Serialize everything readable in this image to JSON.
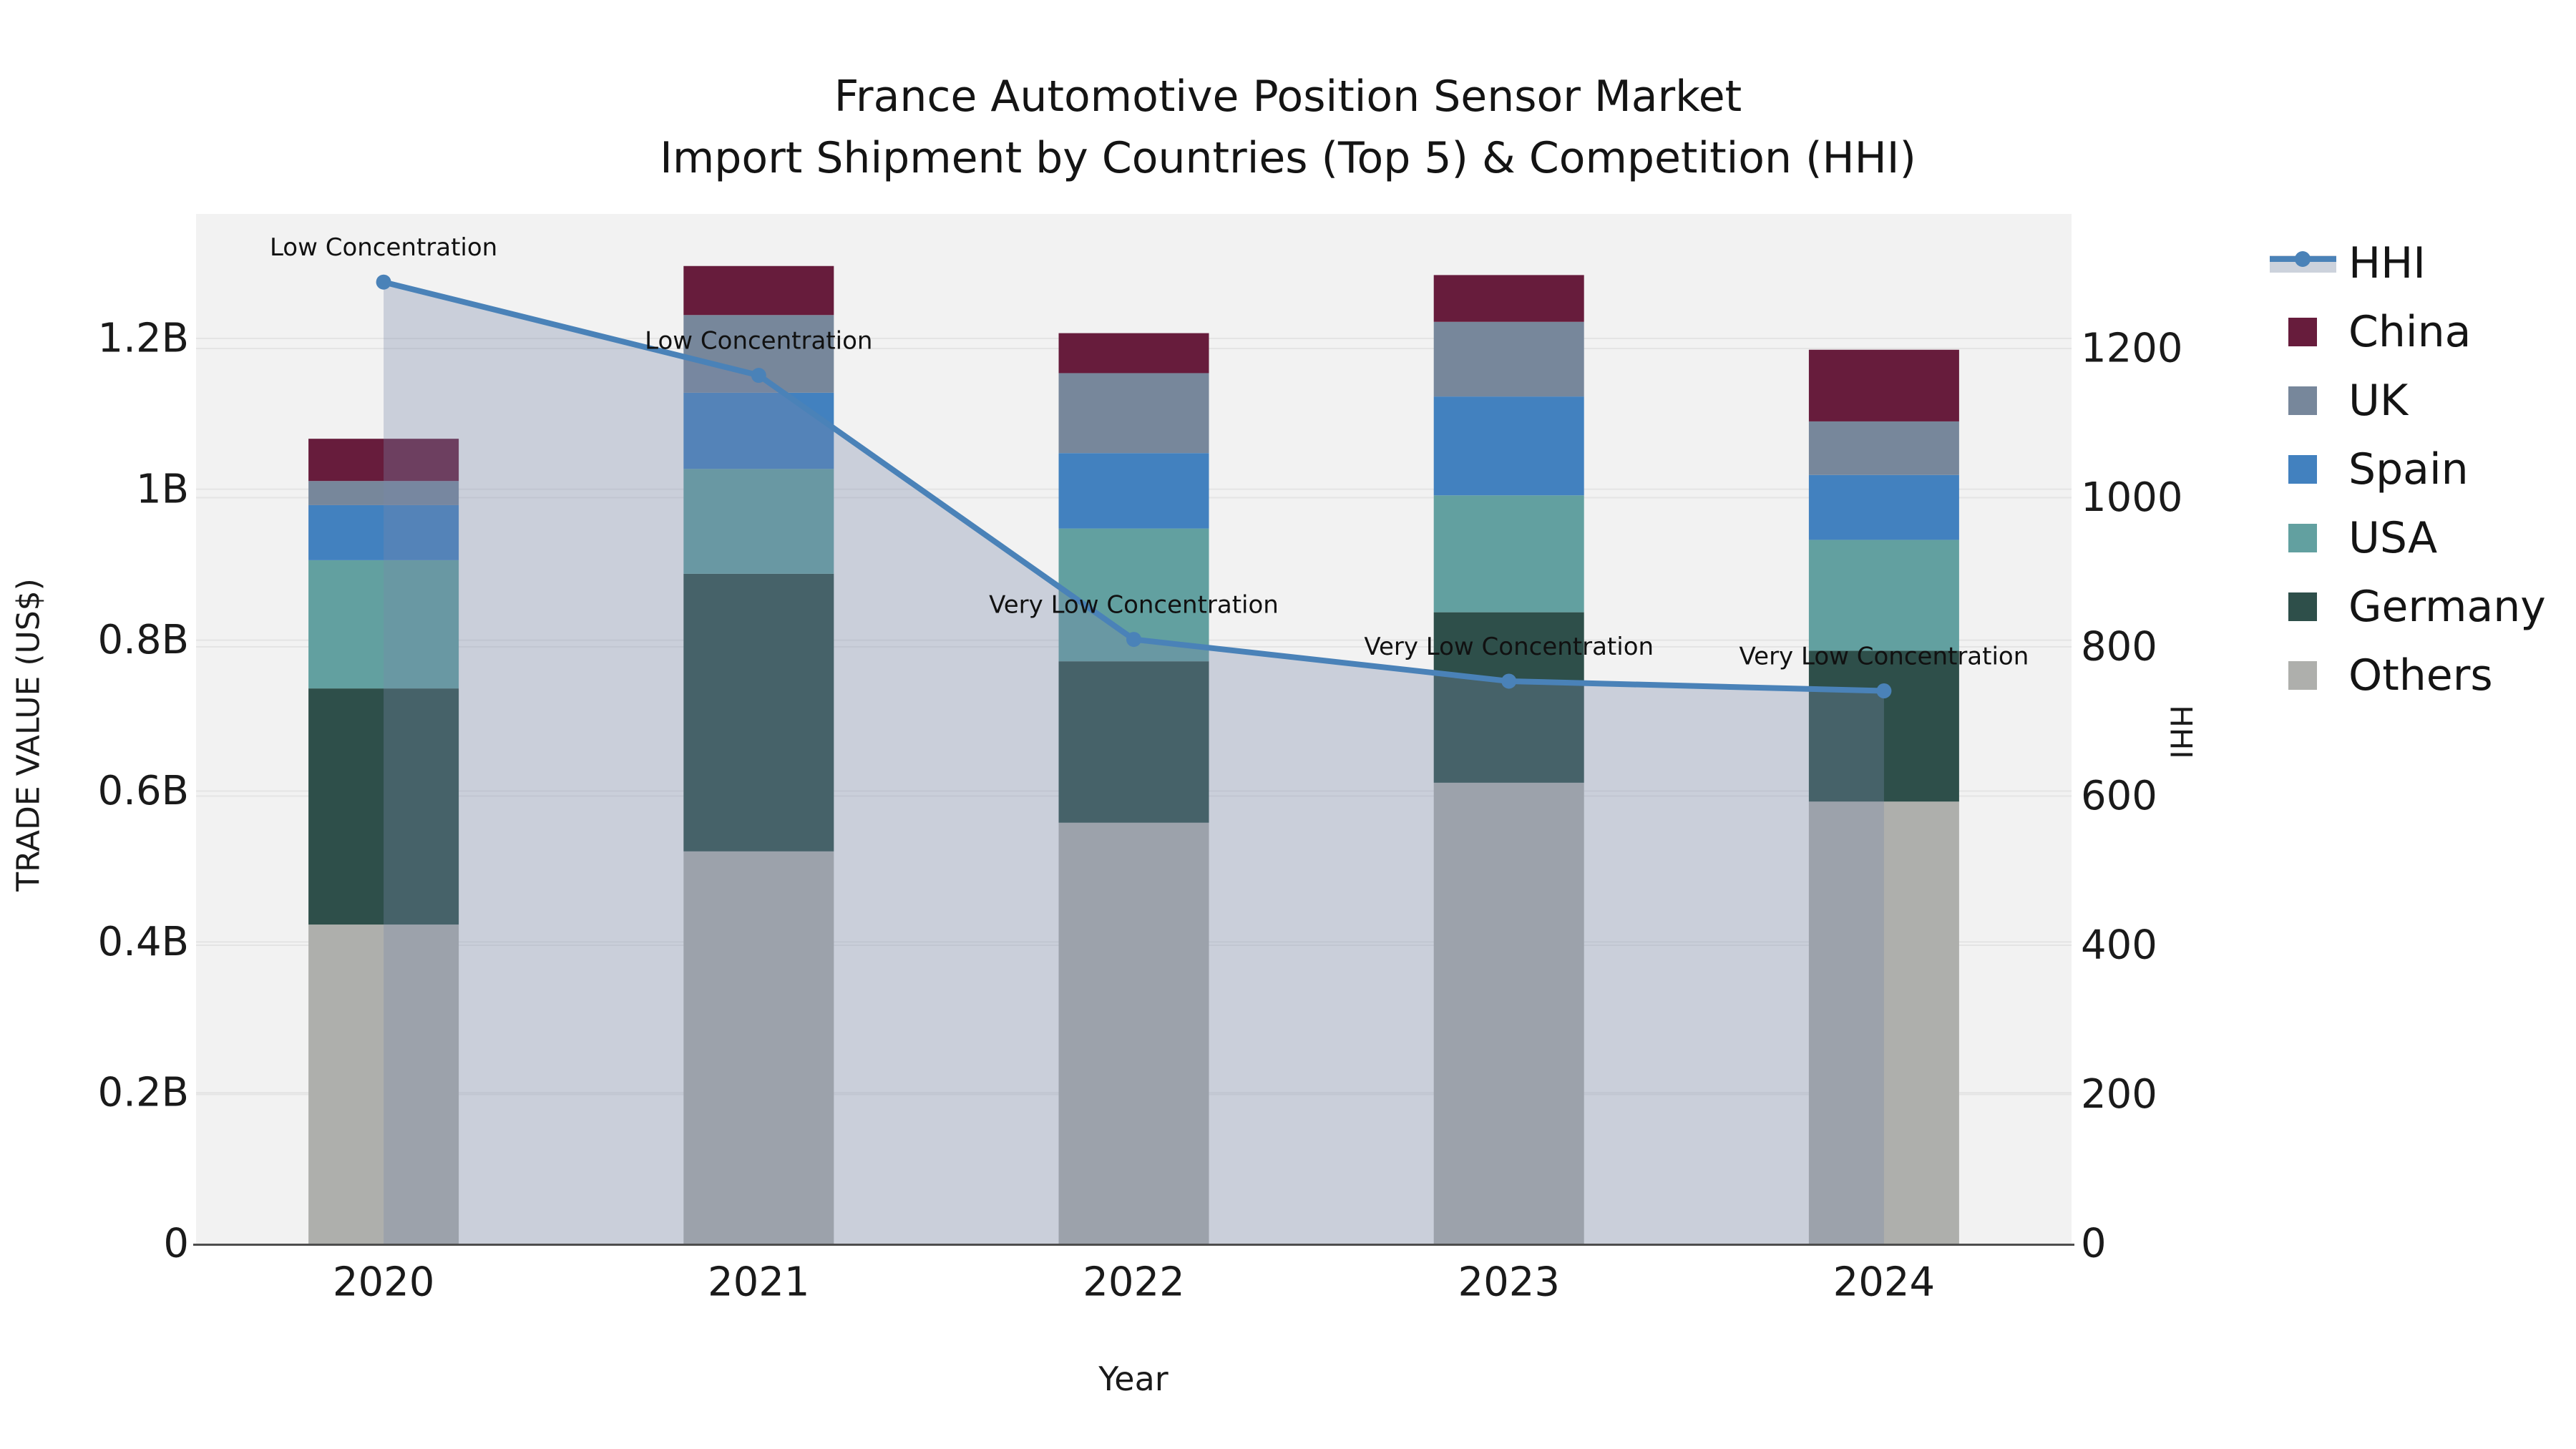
{
  "title": {
    "line1": "France Automotive Position Sensor Market",
    "line2": "Import Shipment by Countries (Top 5) & Competition (HHI)"
  },
  "axes": {
    "x_label": "Year",
    "y_left_label": "TRADE VALUE (US$)",
    "y_right_label": "HHI",
    "y_left_ticks": [
      "0",
      "0.2B",
      "0.4B",
      "0.6B",
      "0.8B",
      "1B",
      "1.2B"
    ],
    "y_right_ticks": [
      "0",
      "200",
      "400",
      "600",
      "800",
      "1000",
      "1200"
    ]
  },
  "legend": {
    "items": [
      {
        "label": "HHI",
        "type": "line",
        "color": "#4a82b8",
        "band_color": "#ccd2dc"
      },
      {
        "label": "China",
        "type": "patch",
        "color": "#671c3c"
      },
      {
        "label": "UK",
        "type": "patch",
        "color": "#77879b"
      },
      {
        "label": "Spain",
        "type": "patch",
        "color": "#4281bf"
      },
      {
        "label": "USA",
        "type": "patch",
        "color": "#62a0a0"
      },
      {
        "label": "Germany",
        "type": "patch",
        "color": "#2e4f4a"
      },
      {
        "label": "Others",
        "type": "patch",
        "color": "#aeafac"
      }
    ]
  },
  "chart_data": {
    "type": "bar",
    "subtype": "stacked-bar-with-line",
    "title": "France Automotive Position Sensor Market — Import Shipment by Countries (Top 5) & Competition (HHI)",
    "xlabel": "Year",
    "ylabel_left": "TRADE VALUE (US$)",
    "ylabel_right": "HHI",
    "categories": [
      "2020",
      "2021",
      "2022",
      "2023",
      "2024"
    ],
    "unit": "US$ billions",
    "ylim_left_B": [
      0,
      1.365
    ],
    "ylim_right_HHI": [
      0,
      1380
    ],
    "grid": true,
    "legend_position": "right",
    "stack_order_bottom_to_top": [
      "Others",
      "Germany",
      "USA",
      "Spain",
      "UK",
      "China"
    ],
    "series": [
      {
        "name": "Others",
        "color": "#aeafac",
        "values": [
          0.423,
          0.52,
          0.558,
          0.611,
          0.586
        ]
      },
      {
        "name": "Germany",
        "color": "#2e4f4a",
        "values": [
          0.313,
          0.368,
          0.214,
          0.226,
          0.2
        ]
      },
      {
        "name": "USA",
        "color": "#62a0a0",
        "values": [
          0.17,
          0.139,
          0.176,
          0.155,
          0.147
        ]
      },
      {
        "name": "Spain",
        "color": "#4281bf",
        "values": [
          0.073,
          0.101,
          0.1,
          0.131,
          0.086
        ]
      },
      {
        "name": "UK",
        "color": "#77879b",
        "values": [
          0.032,
          0.103,
          0.106,
          0.099,
          0.071
        ]
      },
      {
        "name": "China",
        "color": "#671c3c",
        "values": [
          0.056,
          0.065,
          0.053,
          0.062,
          0.095
        ]
      }
    ],
    "bar_totals_B": [
      1.067,
      1.296,
      1.207,
      1.284,
      1.185
    ],
    "line_series": {
      "name": "HHI",
      "color": "#4a82b8",
      "area_color": "rgba(122,137,170,0.33)",
      "values": [
        1289,
        1164,
        810,
        754,
        741
      ]
    },
    "annotations": [
      "Low Concentration",
      "Low Concentration",
      "Very Low Concentration",
      "Very Low Concentration",
      "Very Low Concentration"
    ]
  },
  "colors": {
    "plot_bg": "#f2f2f2",
    "grid": "#e4e4e4",
    "axis_line": "#4d4d4d",
    "text": "#1a1a1a"
  }
}
